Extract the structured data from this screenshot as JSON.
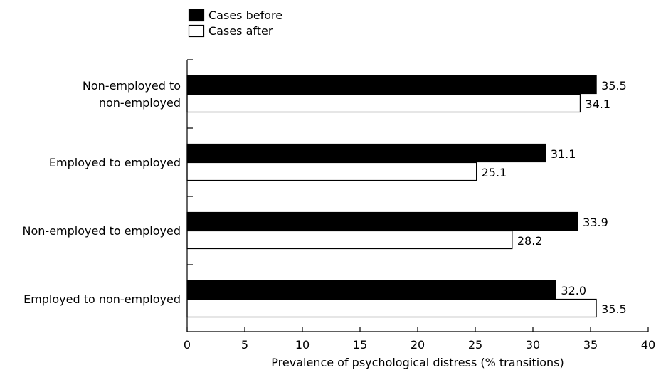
{
  "chart_data": {
    "type": "bar",
    "orientation": "horizontal",
    "categories": [
      [
        "Non-employed to",
        "non-employed"
      ],
      [
        "Employed to employed"
      ],
      [
        "Non-employed to employed"
      ],
      [
        "Employed to non-employed"
      ]
    ],
    "series": [
      {
        "name": "Cases before",
        "values": [
          35.5,
          31.1,
          33.9,
          32.0
        ],
        "labels": [
          "35.5",
          "31.1",
          "33.9",
          "32.0"
        ],
        "fill": "#000000"
      },
      {
        "name": "Cases after",
        "values": [
          34.1,
          25.1,
          28.2,
          35.5
        ],
        "labels": [
          "34.1",
          "25.1",
          "28.2",
          "35.5"
        ],
        "fill": "#ffffff"
      }
    ],
    "xlabel": "Prevalence of psychological distress (% transitions)",
    "ylabel": "",
    "xlim": [
      0,
      40
    ],
    "xticks": [
      "0",
      "5",
      "10",
      "15",
      "20",
      "25",
      "30",
      "35",
      "40"
    ],
    "legend_position": "top-left",
    "grid": false
  }
}
